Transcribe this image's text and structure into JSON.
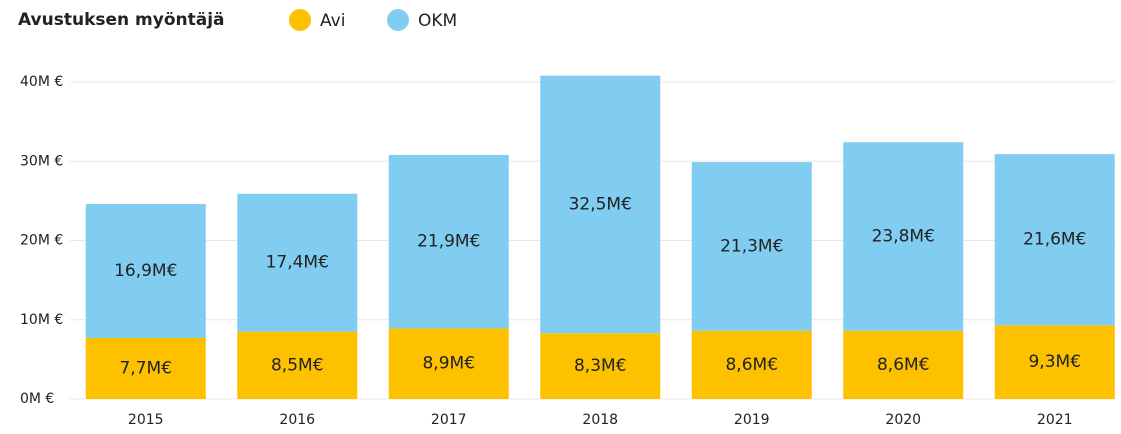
{
  "chart_data": {
    "type": "bar",
    "stacked": true,
    "legend_title": "Avustuksen myöntäjä",
    "legend": "top-left",
    "grid": true,
    "categories": [
      "2015",
      "2016",
      "2017",
      "2018",
      "2019",
      "2020",
      "2021"
    ],
    "series": [
      {
        "name": "Avi",
        "color": "#fdc100",
        "values": [
          7.7,
          8.5,
          8.9,
          8.3,
          8.6,
          8.6,
          9.3
        ],
        "value_labels": [
          "7,7M€",
          "8,5M€",
          "8,9M€",
          "8,3M€",
          "8,6M€",
          "8,6M€",
          "9,3M€"
        ]
      },
      {
        "name": "OKM",
        "color": "#80cdf1",
        "values": [
          16.9,
          17.4,
          21.9,
          32.5,
          21.3,
          23.8,
          21.6
        ],
        "value_labels": [
          "16,9M€",
          "17,4M€",
          "21,9M€",
          "32,5M€",
          "21,3M€",
          "23,8M€",
          "21,6M€"
        ]
      }
    ],
    "ylim": [
      0,
      40
    ],
    "yticks": [
      {
        "value": 0,
        "label": "0M €"
      },
      {
        "value": 10,
        "label": "10M €"
      },
      {
        "value": 20,
        "label": "20M €"
      },
      {
        "value": 30,
        "label": "30M €"
      },
      {
        "value": 40,
        "label": "40M €"
      }
    ]
  }
}
